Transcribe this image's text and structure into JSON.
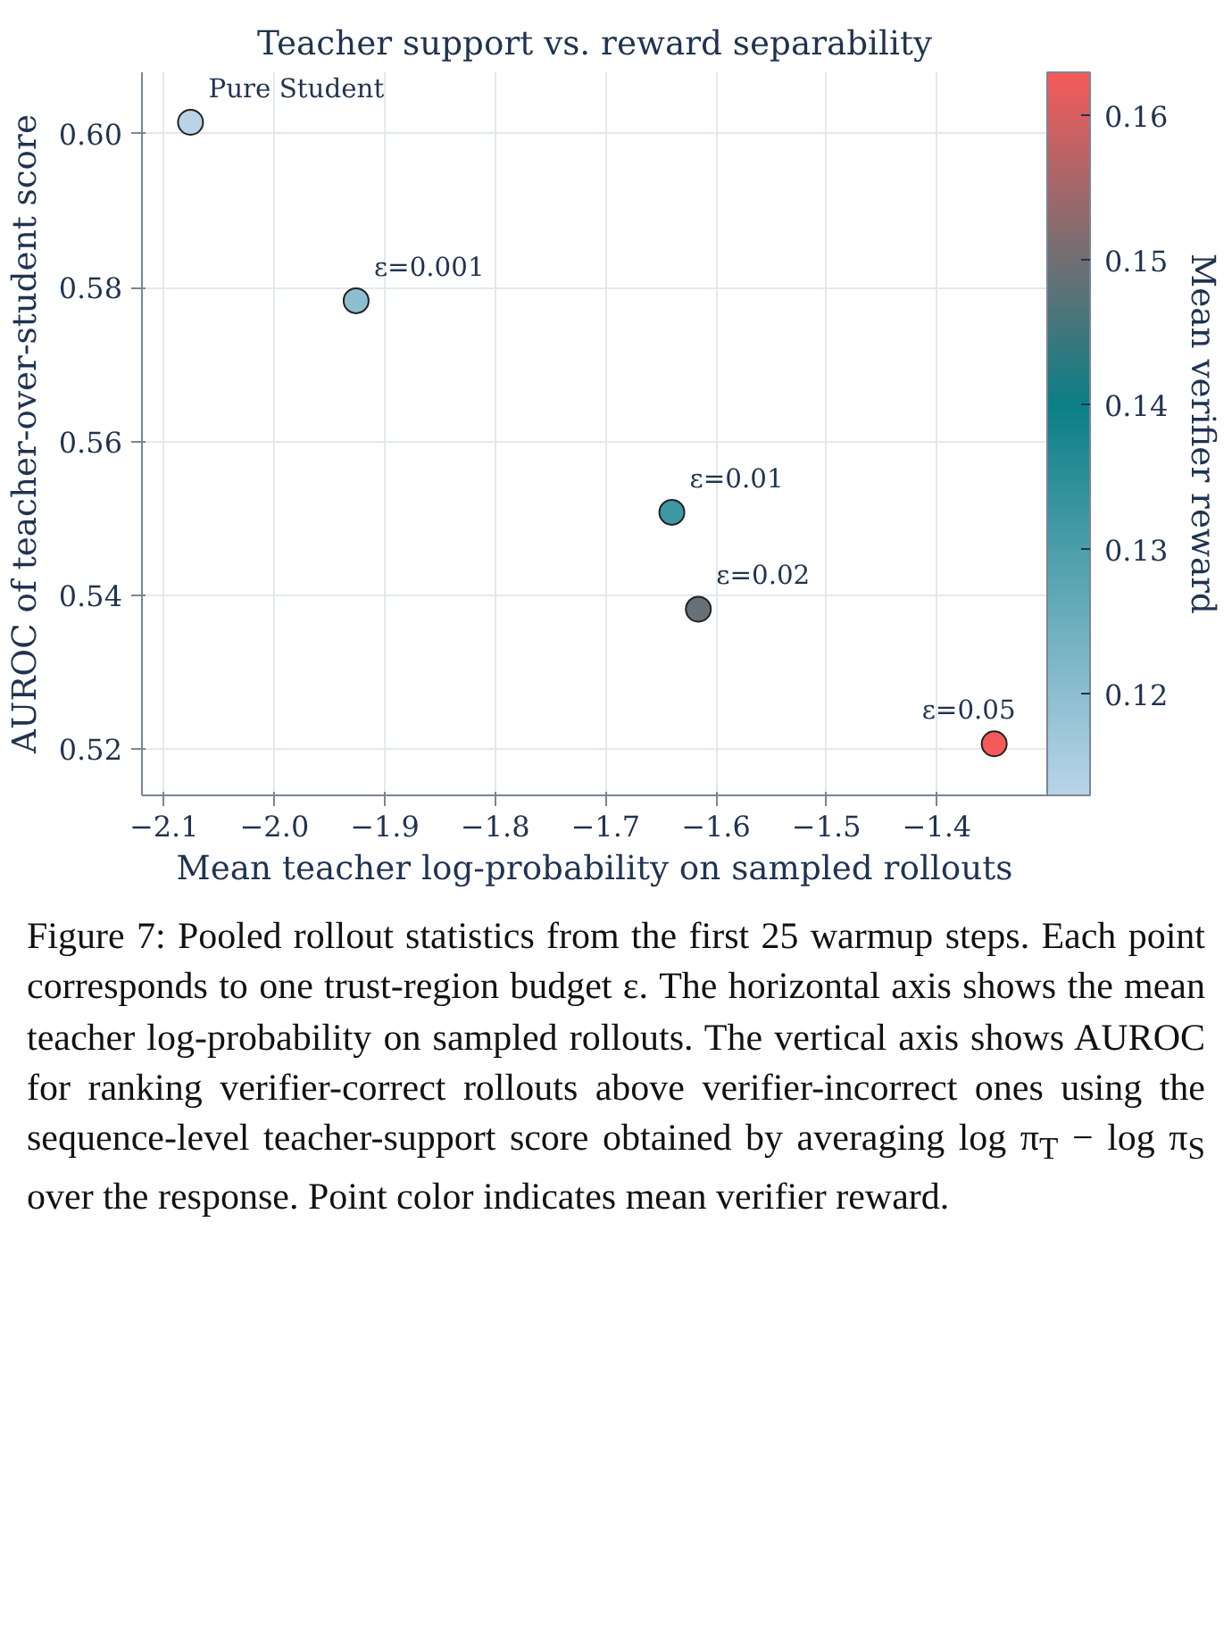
{
  "chart_data": {
    "type": "scatter",
    "title": "Teacher support vs. reward separability",
    "xlabel": "Mean teacher log-probability on sampled rollouts",
    "ylabel": "AUROC of teacher-over-student score",
    "clabel": "Mean verifier reward",
    "x": [
      -2.076,
      -1.926,
      -1.64,
      -1.616,
      -1.348
    ],
    "values": [
      0.6015,
      0.5783,
      0.5508,
      0.5382,
      0.5207
    ],
    "cvalues": [
      0.113,
      0.12,
      0.132,
      0.149,
      0.163
    ],
    "clim": [
      0.113,
      0.163
    ],
    "cticks": [
      {
        "value": 0.12,
        "label": "0.12"
      },
      {
        "value": 0.13,
        "label": "0.13"
      },
      {
        "value": 0.14,
        "label": "0.14"
      },
      {
        "value": 0.15,
        "label": "0.15"
      },
      {
        "value": 0.16,
        "label": "0.16"
      }
    ],
    "xlim": [
      -2.12,
      -1.3
    ],
    "xticks": [
      {
        "value": -2.1,
        "label": "−2.1"
      },
      {
        "value": -2.0,
        "label": "−2.0"
      },
      {
        "value": -1.9,
        "label": "−1.9"
      },
      {
        "value": -1.8,
        "label": "−1.8"
      },
      {
        "value": -1.7,
        "label": "−1.7"
      },
      {
        "value": -1.6,
        "label": "−1.6"
      },
      {
        "value": -1.5,
        "label": "−1.5"
      },
      {
        "value": -1.4,
        "label": "−1.4"
      }
    ],
    "ylim": [
      0.514,
      0.608
    ],
    "yticks": [
      {
        "value": 0.52,
        "label": "0.52"
      },
      {
        "value": 0.54,
        "label": "0.54"
      },
      {
        "value": 0.56,
        "label": "0.56"
      },
      {
        "value": 0.58,
        "label": "0.58"
      },
      {
        "value": 0.6,
        "label": "0.60"
      }
    ],
    "grid": true,
    "marker": "circle",
    "annotations": [
      {
        "text": "Pure Student",
        "x": -2.076,
        "y": 0.6015
      },
      {
        "text": "ε=0.001",
        "x": -1.926,
        "y": 0.5783
      },
      {
        "text": "ε=0.01",
        "x": -1.64,
        "y": 0.5508
      },
      {
        "text": "ε=0.02",
        "x": -1.616,
        "y": 0.5382
      },
      {
        "text": "ε=0.05",
        "x": -1.348,
        "y": 0.5207
      },
      "Figure 7: Pooled rollout statistics from the first 25 warmup steps. Each point corresponds to one trust-region budget ε. The horizontal axis shows the mean teacher log-probability on sampled rollouts. The vertical axis shows AUROC for ranking verifier-correct rollouts above verifier-incorrect ones using the sequence-level teacher-support score obtained by averaging log π$_{T}$ − log π$_{S}$ over the response. Point color indicates mean verifier reward."
    ]
  }
}
